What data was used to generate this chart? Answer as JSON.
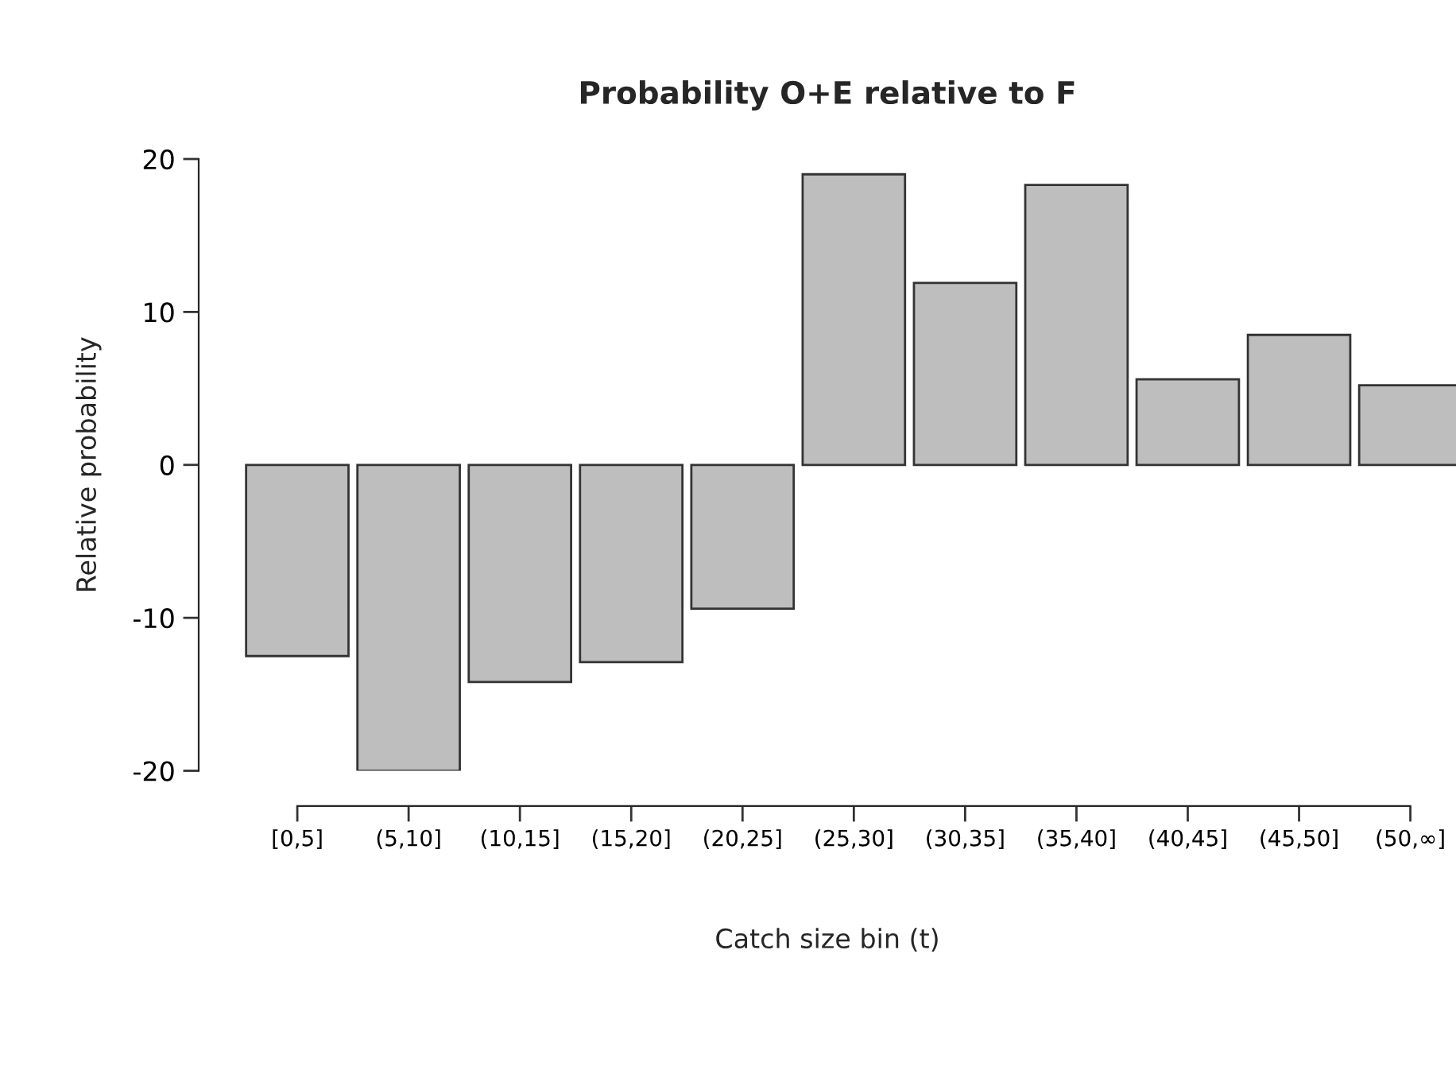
{
  "chart_data": {
    "type": "bar",
    "title": "Probability O+E relative to F",
    "xlabel": "Catch size bin (t)",
    "ylabel": "Relative probability",
    "categories": [
      "[0,5]",
      "(5,10]",
      "(10,15]",
      "(15,20]",
      "(20,25]",
      "(25,30]",
      "(30,35]",
      "(35,40]",
      "(40,45]",
      "(45,50]",
      "(50,∞]"
    ],
    "values": [
      -12.5,
      -20,
      -14.2,
      -12.9,
      -9.4,
      19.0,
      11.9,
      18.3,
      5.6,
      8.5,
      5.2
    ],
    "color": "#bebebe",
    "ylim": [
      -20,
      20
    ],
    "yticks": [
      -20,
      -10,
      0,
      10,
      20
    ],
    "grid": false,
    "legend": false
  }
}
